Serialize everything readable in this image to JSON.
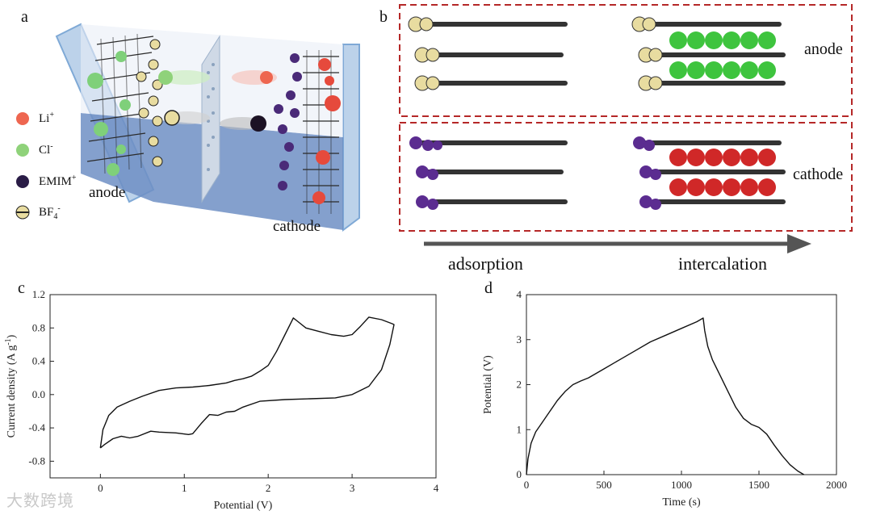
{
  "panels": {
    "a": {
      "label": "a",
      "legend": [
        {
          "symbol": "Li",
          "sup": "+",
          "sub": "",
          "color": "#ee6650"
        },
        {
          "symbol": "Cl",
          "sup": "-",
          "sub": "",
          "color": "#8fd27a"
        },
        {
          "symbol": "EMIM",
          "sup": "+",
          "sub": "",
          "color": "#2a1c46"
        },
        {
          "symbol": "BF",
          "sup": "-",
          "sub": "4",
          "color": "#d8cf8a"
        }
      ],
      "anode_label": "anode",
      "cathode_label": "cathode"
    },
    "b": {
      "label": "b",
      "anode_label": "anode",
      "cathode_label": "cathode",
      "arrow_left_label": "adsorption",
      "arrow_right_label": "intercalation"
    },
    "c": {
      "label": "c"
    },
    "d": {
      "label": "d"
    }
  },
  "colors": {
    "box_border": "#b52828",
    "graphene": "#3a3a3a",
    "anion_green": "#3ec43e",
    "cation_red": "#d02828",
    "emim": "#5b2c90",
    "bf4": "#e8dca0",
    "cell_blue": "#7fa9d6",
    "arrow": "#555555"
  },
  "chart_data": [
    {
      "type": "line",
      "panel": "c",
      "xlabel": "Potential (V)",
      "ylabel": "Current density (A g",
      "ylabel_sup": "-1",
      "ylabel_end": ")",
      "xlim": [
        -0.6,
        4
      ],
      "ylim": [
        -1.0,
        1.2
      ],
      "xticks": [
        0,
        1,
        2,
        3,
        4
      ],
      "yticks": [
        -0.8,
        -0.4,
        0.0,
        0.4,
        0.8,
        1.2
      ],
      "ytick_labels": [
        "-0.8",
        "-0.4",
        "0.0",
        "0.4",
        "0.8",
        "1.2"
      ],
      "series": [
        {
          "x": [
            0.0,
            0.03,
            0.1,
            0.2,
            0.35,
            0.5,
            0.7,
            0.9,
            1.1,
            1.3,
            1.5,
            1.6,
            1.7,
            1.8,
            1.9,
            2.0,
            2.1,
            2.2,
            2.3,
            2.35,
            2.45,
            2.6,
            2.75,
            2.9,
            3.0,
            3.1,
            3.2,
            3.35,
            3.48,
            3.5,
            3.45,
            3.35,
            3.2,
            3.0,
            2.8,
            2.5,
            2.2,
            1.9,
            1.7,
            1.6,
            1.5,
            1.4,
            1.3,
            1.2,
            1.1,
            1.05,
            0.9,
            0.7,
            0.6,
            0.45,
            0.35,
            0.25,
            0.15,
            0.05,
            0.0
          ],
          "y": [
            -0.64,
            -0.42,
            -0.25,
            -0.15,
            -0.08,
            -0.02,
            0.05,
            0.08,
            0.09,
            0.11,
            0.14,
            0.17,
            0.19,
            0.22,
            0.28,
            0.35,
            0.52,
            0.72,
            0.92,
            0.88,
            0.8,
            0.76,
            0.72,
            0.7,
            0.72,
            0.82,
            0.93,
            0.9,
            0.85,
            0.84,
            0.6,
            0.3,
            0.1,
            0.0,
            -0.04,
            -0.05,
            -0.06,
            -0.08,
            -0.15,
            -0.2,
            -0.21,
            -0.25,
            -0.24,
            -0.35,
            -0.47,
            -0.48,
            -0.46,
            -0.45,
            -0.44,
            -0.5,
            -0.52,
            -0.5,
            -0.53,
            -0.6,
            -0.64
          ]
        }
      ]
    },
    {
      "type": "line",
      "panel": "d",
      "xlabel": "Time (s)",
      "ylabel": "Potential (V)",
      "xlim": [
        0,
        2000
      ],
      "ylim": [
        0,
        4
      ],
      "xticks": [
        0,
        500,
        1000,
        1500,
        2000
      ],
      "yticks": [
        0,
        1,
        2,
        3,
        4
      ],
      "series": [
        {
          "x": [
            0,
            10,
            30,
            60,
            100,
            150,
            200,
            250,
            300,
            350,
            400,
            500,
            600,
            700,
            800,
            900,
            1000,
            1100,
            1140,
            1150,
            1170,
            1200,
            1250,
            1300,
            1350,
            1400,
            1450,
            1500,
            1550,
            1600,
            1650,
            1700,
            1750,
            1790
          ],
          "y": [
            0,
            0.35,
            0.7,
            0.95,
            1.15,
            1.4,
            1.65,
            1.85,
            2.0,
            2.08,
            2.15,
            2.35,
            2.55,
            2.75,
            2.95,
            3.1,
            3.25,
            3.4,
            3.48,
            3.2,
            2.85,
            2.55,
            2.2,
            1.85,
            1.5,
            1.25,
            1.12,
            1.05,
            0.9,
            0.65,
            0.42,
            0.22,
            0.08,
            0
          ]
        }
      ]
    }
  ],
  "watermark": "大数跨境"
}
